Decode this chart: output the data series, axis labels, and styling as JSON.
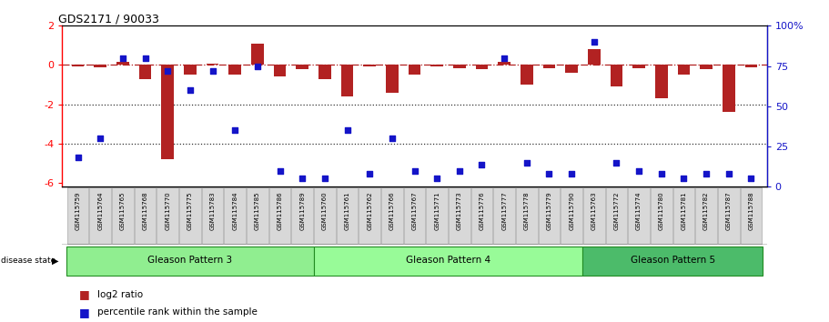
{
  "title": "GDS2171 / 90033",
  "samples": [
    "GSM115759",
    "GSM115764",
    "GSM115765",
    "GSM115768",
    "GSM115770",
    "GSM115775",
    "GSM115783",
    "GSM115784",
    "GSM115785",
    "GSM115786",
    "GSM115789",
    "GSM115760",
    "GSM115761",
    "GSM115762",
    "GSM115766",
    "GSM115767",
    "GSM115771",
    "GSM115773",
    "GSM115776",
    "GSM115777",
    "GSM115778",
    "GSM115779",
    "GSM115790",
    "GSM115763",
    "GSM115772",
    "GSM115774",
    "GSM115780",
    "GSM115781",
    "GSM115782",
    "GSM115787",
    "GSM115788"
  ],
  "log2_ratio": [
    -0.05,
    -0.1,
    0.15,
    -0.7,
    -4.8,
    -0.5,
    0.08,
    -0.5,
    1.1,
    -0.6,
    -0.2,
    -0.7,
    -1.6,
    -0.05,
    -1.4,
    -0.5,
    -0.05,
    -0.15,
    -0.2,
    0.15,
    -1.0,
    -0.15,
    -0.4,
    0.8,
    -1.1,
    -0.15,
    -1.7,
    -0.5,
    -0.2,
    -2.4,
    -0.1
  ],
  "percentile": [
    18,
    30,
    80,
    80,
    72,
    60,
    72,
    35,
    75,
    10,
    5,
    5,
    35,
    8,
    30,
    10,
    5,
    10,
    14,
    80,
    15,
    8,
    8,
    90,
    15,
    10,
    8,
    5,
    8,
    8,
    5
  ],
  "groups": [
    {
      "label": "Gleason Pattern 3",
      "start": 0,
      "end": 10,
      "color": "#90EE90"
    },
    {
      "label": "Gleason Pattern 4",
      "start": 11,
      "end": 22,
      "color": "#98FB98"
    },
    {
      "label": "Gleason Pattern 5",
      "start": 23,
      "end": 30,
      "color": "#4CBB6A"
    }
  ],
  "ylim_left": [
    -6.2,
    2.0
  ],
  "ylim_right": [
    0,
    100
  ],
  "bar_color": "#B22222",
  "dot_color": "#1414C8",
  "hline_y0_color": "#B22222",
  "hline_dotted_color": "#333333",
  "background_color": "white",
  "dot_size": 22,
  "left_yticks": [
    -6,
    -4,
    -2,
    0,
    2
  ],
  "right_yticks": [
    0,
    25,
    50,
    75,
    100
  ]
}
